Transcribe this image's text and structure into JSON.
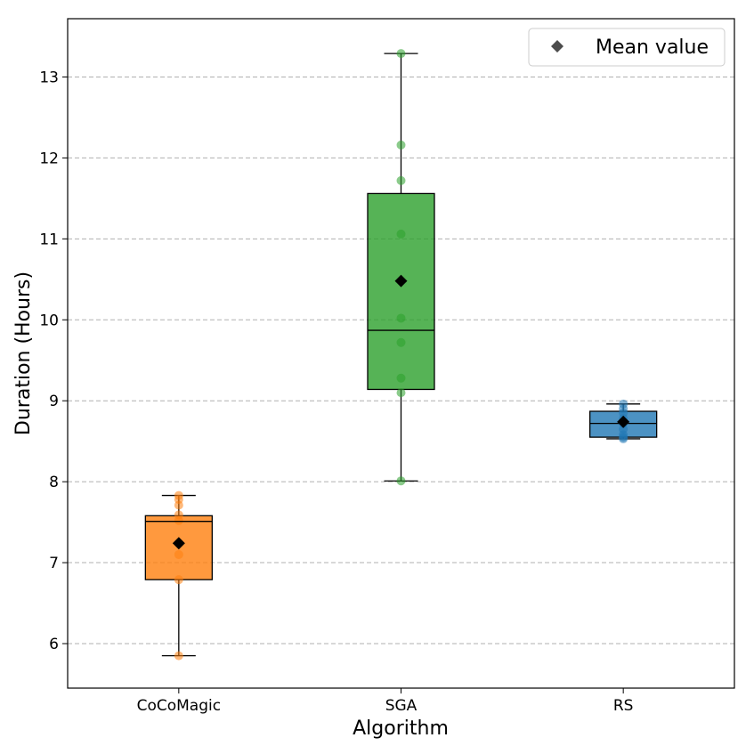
{
  "chart_data": {
    "type": "boxplot",
    "xlabel": "Algorithm",
    "ylabel": "Duration (Hours)",
    "ylim": [
      5.45,
      13.72
    ],
    "yticks": [
      6,
      7,
      8,
      9,
      10,
      11,
      12,
      13
    ],
    "grid": "horizontal-dashed",
    "legend": {
      "position": "top-right",
      "entries": [
        {
          "label": "Mean value",
          "marker": "diamond"
        }
      ]
    },
    "categories": [
      "CoCoMagic",
      "SGA",
      "RS"
    ],
    "series": [
      {
        "name": "CoCoMagic",
        "color": "#ff7f0e",
        "whisker_low": 5.85,
        "q1": 6.79,
        "median": 7.51,
        "q3": 7.58,
        "whisker_high": 7.83,
        "mean": 7.24,
        "points": [
          7.83,
          7.78,
          7.71,
          7.59,
          7.52,
          7.24,
          7.1,
          6.79,
          5.85
        ]
      },
      {
        "name": "SGA",
        "color": "#2ca02c",
        "whisker_low": 8.01,
        "q1": 9.14,
        "median": 9.87,
        "q3": 11.56,
        "whisker_high": 13.29,
        "mean": 10.48,
        "points": [
          13.29,
          12.16,
          11.72,
          11.06,
          10.02,
          9.72,
          9.28,
          9.1,
          8.01
        ]
      },
      {
        "name": "RS",
        "color": "#1f77b4",
        "whisker_low": 8.53,
        "q1": 8.55,
        "median": 8.72,
        "q3": 8.87,
        "whisker_high": 8.96,
        "mean": 8.74,
        "points": [
          8.96,
          8.9,
          8.85,
          8.78,
          8.72,
          8.65,
          8.58,
          8.55,
          8.53
        ]
      }
    ]
  }
}
